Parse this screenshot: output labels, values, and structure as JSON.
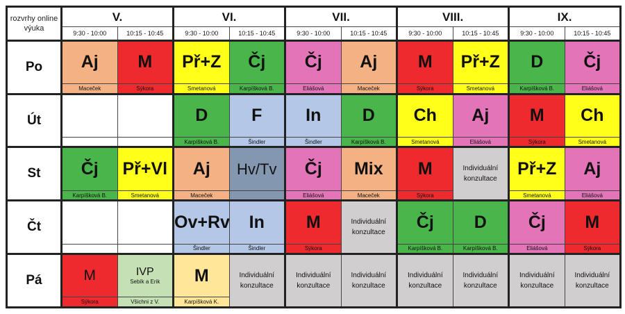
{
  "header": {
    "corner": "rozvrhy online výuka",
    "grades": [
      "V.",
      "VI.",
      "VII.",
      "VIII.",
      "IX."
    ],
    "times": [
      "9:30 - 10:00",
      "10:15 - 10:45"
    ]
  },
  "colors": {
    "orange": "#f4b183",
    "red": "#ee2a2e",
    "yellow": "#ffff1a",
    "green": "#4ab54a",
    "pink": "#e374b8",
    "blue": "#b4c7e7",
    "slate": "#8497b0",
    "gray": "#d0cece",
    "lightgreen": "#c5e0b4",
    "lightyellow": "#ffe699",
    "white": "#ffffff"
  },
  "days": [
    {
      "label": "Po",
      "cells": [
        {
          "subject": "Aj",
          "teacher": "Maceček",
          "color": "orange"
        },
        {
          "subject": "M",
          "teacher": "Sýkora",
          "color": "red"
        },
        {
          "subject": "Př+Z",
          "teacher": "Smetanová",
          "color": "yellow"
        },
        {
          "subject": "Čj",
          "teacher": "Karpíšková B.",
          "color": "green"
        },
        {
          "subject": "Čj",
          "teacher": "Eliášová",
          "color": "pink"
        },
        {
          "subject": "Aj",
          "teacher": "Maceček",
          "color": "orange"
        },
        {
          "subject": "M",
          "teacher": "Sýkora",
          "color": "red"
        },
        {
          "subject": "Př+Z",
          "teacher": "Smetanová",
          "color": "yellow"
        },
        {
          "subject": "D",
          "teacher": "Karpíšková B.",
          "color": "green"
        },
        {
          "subject": "Čj",
          "teacher": "Eliášová",
          "color": "pink"
        }
      ]
    },
    {
      "label": "Út",
      "cells": [
        {
          "subject": "",
          "teacher": "",
          "color": "white"
        },
        {
          "subject": "",
          "teacher": "",
          "color": "white"
        },
        {
          "subject": "D",
          "teacher": "Karpíšková B.",
          "color": "green"
        },
        {
          "subject": "F",
          "teacher": "Šindler",
          "color": "blue"
        },
        {
          "subject": "In",
          "teacher": "Šindler",
          "color": "blue"
        },
        {
          "subject": "D",
          "teacher": "Karpíšková B.",
          "color": "green"
        },
        {
          "subject": "Ch",
          "teacher": "Smetanová",
          "color": "yellow"
        },
        {
          "subject": "Aj",
          "teacher": "Eliášová",
          "color": "pink"
        },
        {
          "subject": "M",
          "teacher": "Sýkora",
          "color": "red"
        },
        {
          "subject": "Ch",
          "teacher": "Smetanová",
          "color": "yellow"
        }
      ]
    },
    {
      "label": "St",
      "cells": [
        {
          "subject": "Čj",
          "teacher": "Karpíšková B.",
          "color": "green"
        },
        {
          "subject": "Př+Vl",
          "teacher": "Smetanová",
          "color": "yellow"
        },
        {
          "subject": "Aj",
          "teacher": "Maceček",
          "color": "orange"
        },
        {
          "subject": "Hv/Tv",
          "teacher": "",
          "color": "slate",
          "style": "thin"
        },
        {
          "subject": "Čj",
          "teacher": "Eliášová",
          "color": "pink"
        },
        {
          "subject": "Mix",
          "teacher": "Maceček",
          "color": "orange"
        },
        {
          "subject": "M",
          "teacher": "Sýkora",
          "color": "red"
        },
        {
          "consult": [
            "Individuální",
            "konzultace"
          ],
          "teacher": "",
          "color": "gray"
        },
        {
          "subject": "Př+Z",
          "teacher": "Smetanová",
          "color": "yellow"
        },
        {
          "subject": "Aj",
          "teacher": "Eliášová",
          "color": "pink"
        }
      ]
    },
    {
      "label": "Čt",
      "cells": [
        {
          "subject": "",
          "teacher": "",
          "color": "white"
        },
        {
          "subject": "",
          "teacher": "",
          "color": "white"
        },
        {
          "subject": "Ov+Rv",
          "teacher": "Šindler",
          "color": "blue"
        },
        {
          "subject": "In",
          "teacher": "Šindler",
          "color": "blue"
        },
        {
          "subject": "M",
          "teacher": "Sýkora",
          "color": "red"
        },
        {
          "consult": [
            "Individuální",
            "konzultace"
          ],
          "teacher": "",
          "color": "gray"
        },
        {
          "subject": "Čj",
          "teacher": "Karpíšková B.",
          "color": "green"
        },
        {
          "subject": "D",
          "teacher": "Karpíšková B.",
          "color": "green"
        },
        {
          "subject": "Čj",
          "teacher": "Eliášová",
          "color": "pink"
        },
        {
          "subject": "M",
          "teacher": "Sýkora",
          "color": "red"
        }
      ]
    },
    {
      "label": "Pá",
      "cells": [
        {
          "subject": "M",
          "teacher": "Sýkora",
          "color": "red",
          "style": "light"
        },
        {
          "ivp": "IVP",
          "ivp_sub": "Sebík a Erik",
          "teacher": "Všichni z V.",
          "color": "lightgreen"
        },
        {
          "subject": "M",
          "teacher": "Karpíšková K.",
          "color": "lightyellow"
        },
        {
          "consult": [
            "Individuální",
            "konzultace"
          ],
          "teacher": "",
          "color": "gray"
        },
        {
          "consult": [
            "Individuální",
            "konzultace"
          ],
          "teacher": "",
          "color": "gray"
        },
        {
          "consult": [
            "Individuální",
            "konzultace"
          ],
          "teacher": "",
          "color": "gray"
        },
        {
          "consult": [
            "Individuální",
            "konzultace"
          ],
          "teacher": "",
          "color": "gray"
        },
        {
          "consult": [
            "Individuální",
            "konzultace"
          ],
          "teacher": "",
          "color": "gray"
        },
        {
          "consult": [
            "Individuální",
            "konzultace"
          ],
          "teacher": "",
          "color": "gray"
        },
        {
          "consult": [
            "Individuální",
            "konzultace"
          ],
          "teacher": "",
          "color": "gray"
        }
      ]
    }
  ]
}
